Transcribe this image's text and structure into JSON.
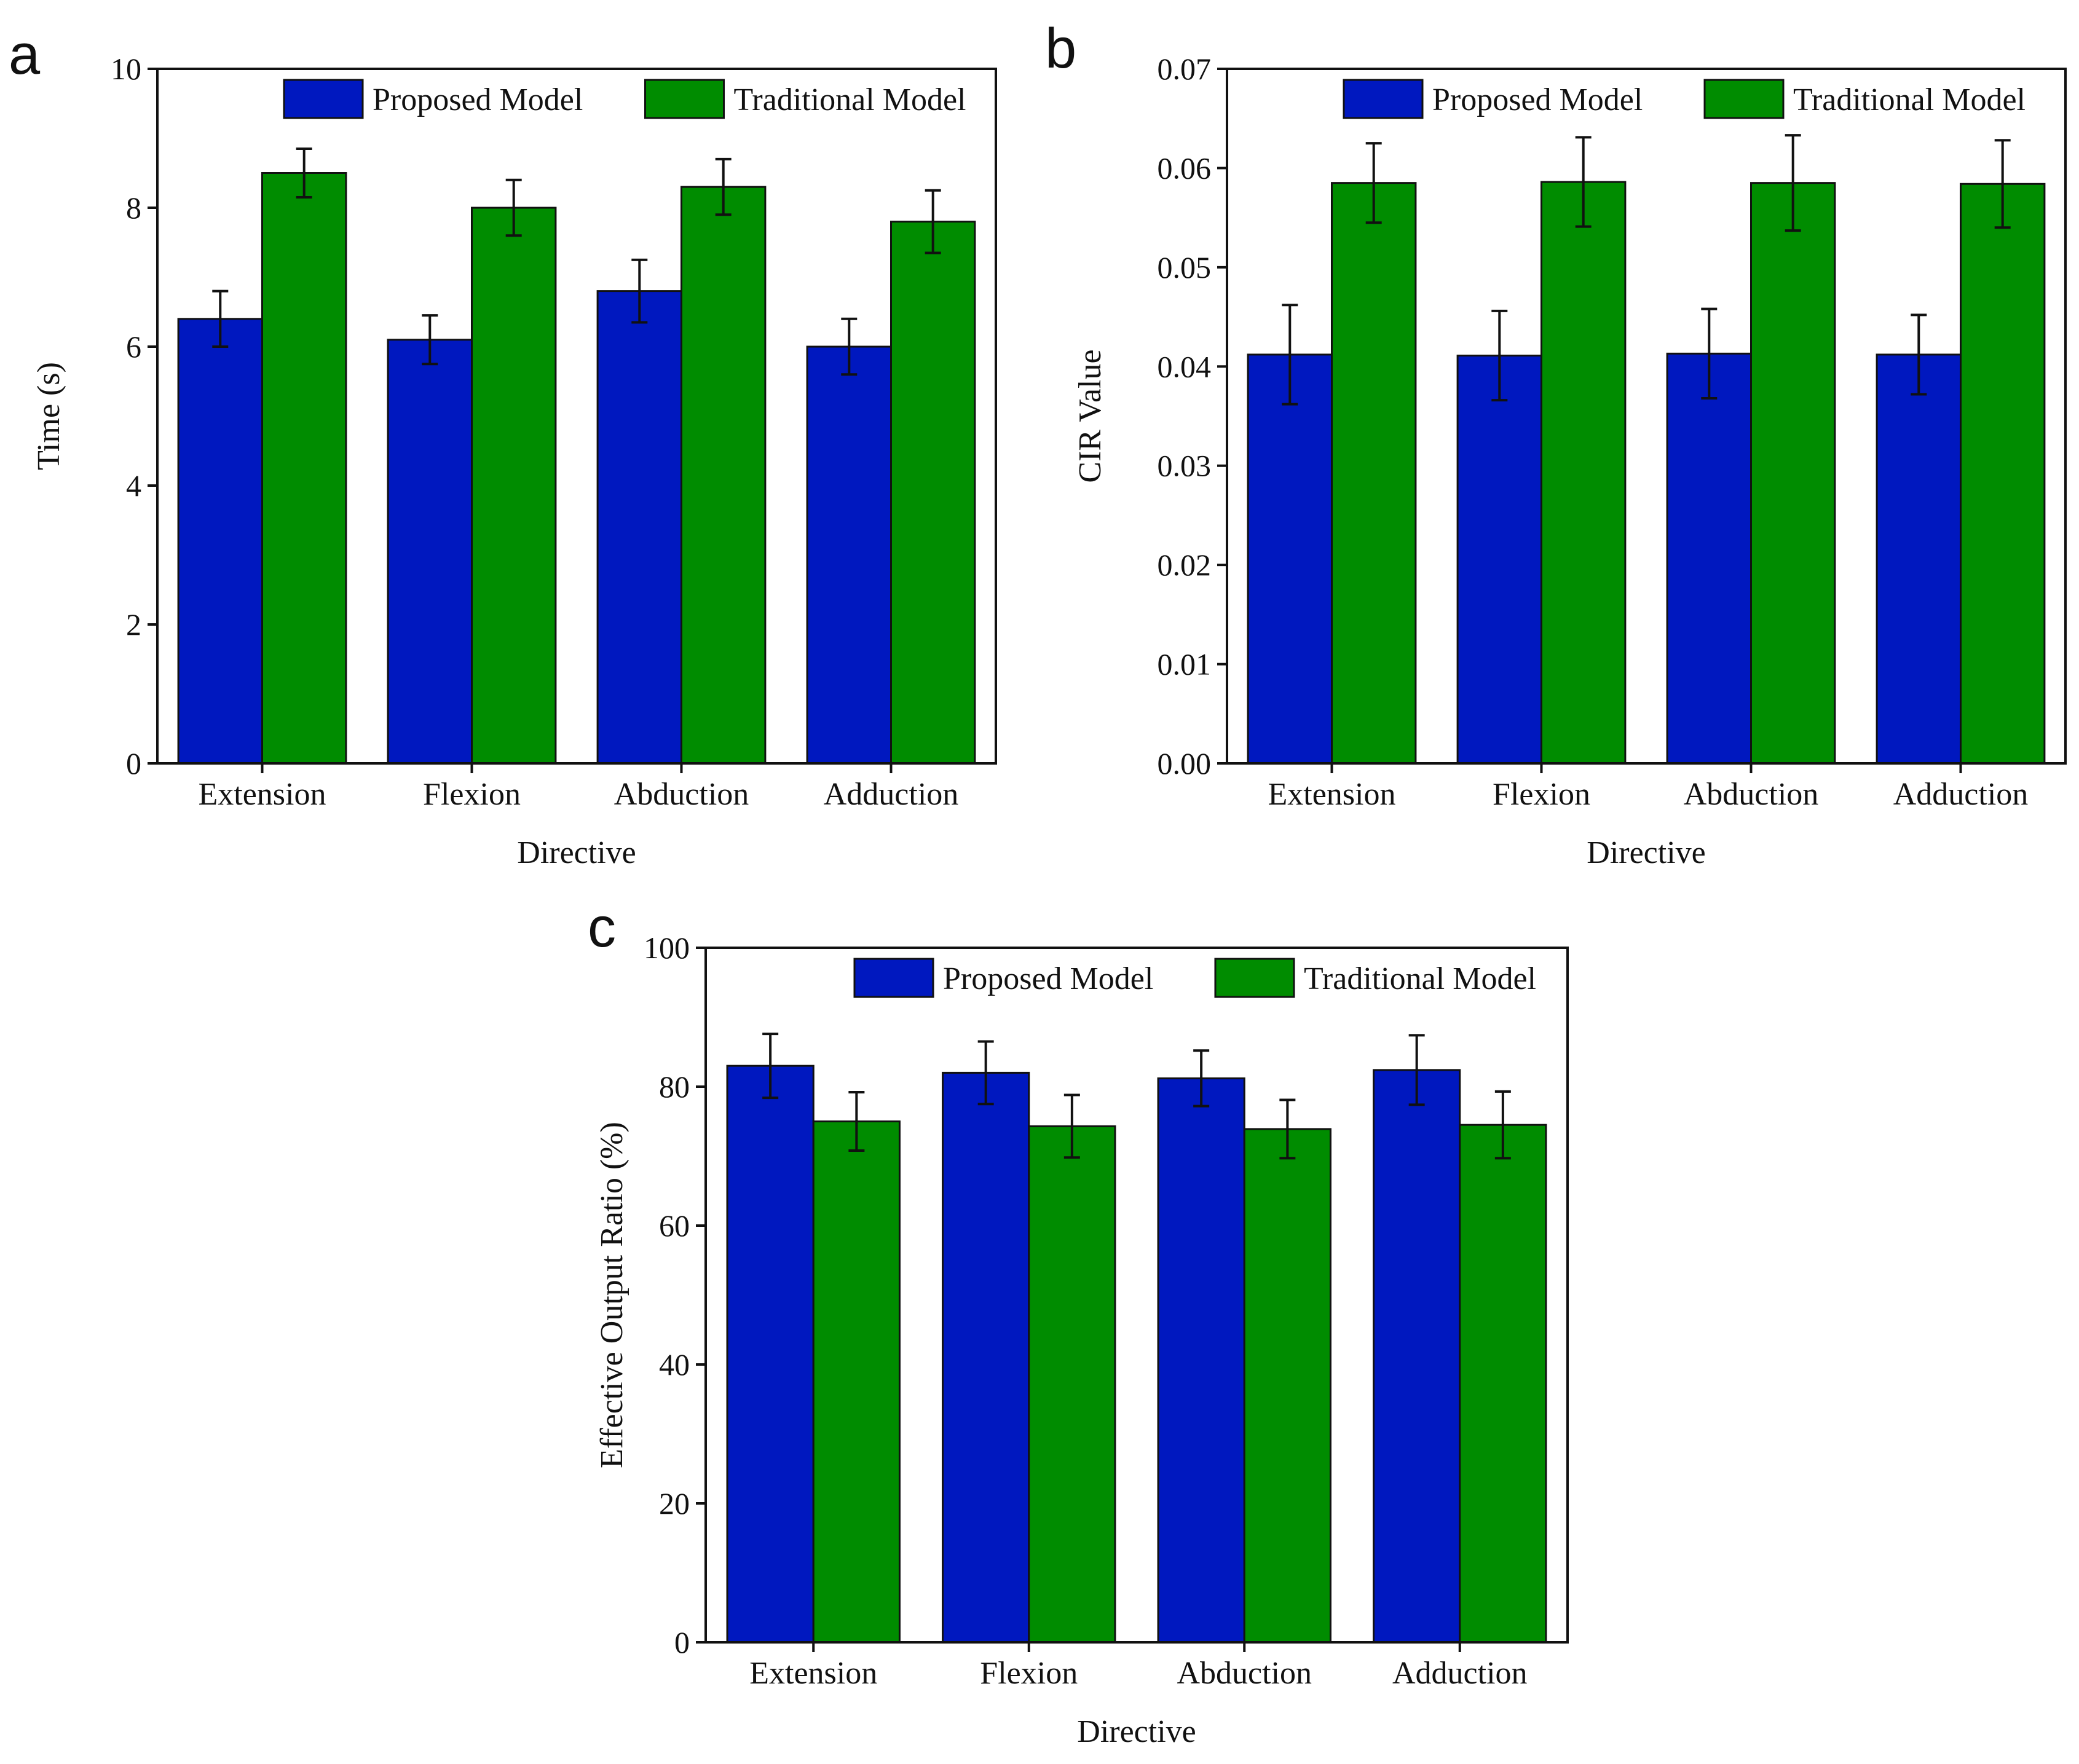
{
  "chart_data": [
    {
      "panel": "a",
      "type": "bar",
      "categories": [
        "Extension",
        "Flexion",
        "Abduction",
        "Adduction"
      ],
      "series": [
        {
          "name": "Proposed Model",
          "color": "#0018bf",
          "values": [
            6.4,
            6.1,
            6.8,
            6.0
          ],
          "errors": [
            0.4,
            0.35,
            0.45,
            0.4
          ]
        },
        {
          "name": "Traditional Model",
          "color": "#008c00",
          "values": [
            8.5,
            8.0,
            8.3,
            7.8
          ],
          "errors": [
            0.35,
            0.4,
            0.4,
            0.45
          ]
        }
      ],
      "xlabel": "Directive",
      "ylabel": "Time (s)",
      "ylim": [
        0,
        10
      ],
      "yticks": [
        0,
        2,
        4,
        6,
        8,
        10
      ],
      "ytick_labels": [
        "0",
        "2",
        "4",
        "6",
        "8",
        "10"
      ],
      "legend": "top-right"
    },
    {
      "panel": "b",
      "type": "bar",
      "categories": [
        "Extension",
        "Flexion",
        "Abduction",
        "Adduction"
      ],
      "series": [
        {
          "name": "Proposed Model",
          "color": "#0018bf",
          "values": [
            0.0412,
            0.0411,
            0.0413,
            0.0412
          ],
          "errors": [
            0.005,
            0.0045,
            0.0045,
            0.004
          ]
        },
        {
          "name": "Traditional Model",
          "color": "#008c00",
          "values": [
            0.0585,
            0.0586,
            0.0585,
            0.0584
          ],
          "errors": [
            0.004,
            0.0045,
            0.0048,
            0.0044
          ]
        }
      ],
      "xlabel": "Directive",
      "ylabel": "CIR Value",
      "ylim": [
        0,
        0.07
      ],
      "yticks": [
        0,
        0.01,
        0.02,
        0.03,
        0.04,
        0.05,
        0.06,
        0.07
      ],
      "ytick_labels": [
        "0.00",
        "0.01",
        "0.02",
        "0.03",
        "0.04",
        "0.05",
        "0.06",
        "0.07"
      ],
      "legend": "top-right"
    },
    {
      "panel": "c",
      "type": "bar",
      "categories": [
        "Extension",
        "Flexion",
        "Abduction",
        "Adduction"
      ],
      "series": [
        {
          "name": "Proposed Model",
          "color": "#0018bf",
          "values": [
            83.0,
            82.0,
            81.2,
            82.4
          ],
          "errors": [
            4.6,
            4.5,
            4.0,
            5.0
          ]
        },
        {
          "name": "Traditional Model",
          "color": "#008c00",
          "values": [
            75.0,
            74.3,
            73.9,
            74.5
          ],
          "errors": [
            4.2,
            4.5,
            4.2,
            4.8
          ]
        }
      ],
      "xlabel": "Directive",
      "ylabel": "Effective Output Ratio (%)",
      "ylim": [
        0,
        100
      ],
      "yticks": [
        0,
        20,
        40,
        60,
        80,
        100
      ],
      "ytick_labels": [
        "0",
        "20",
        "40",
        "60",
        "80",
        "100"
      ],
      "legend": "top-right"
    }
  ]
}
